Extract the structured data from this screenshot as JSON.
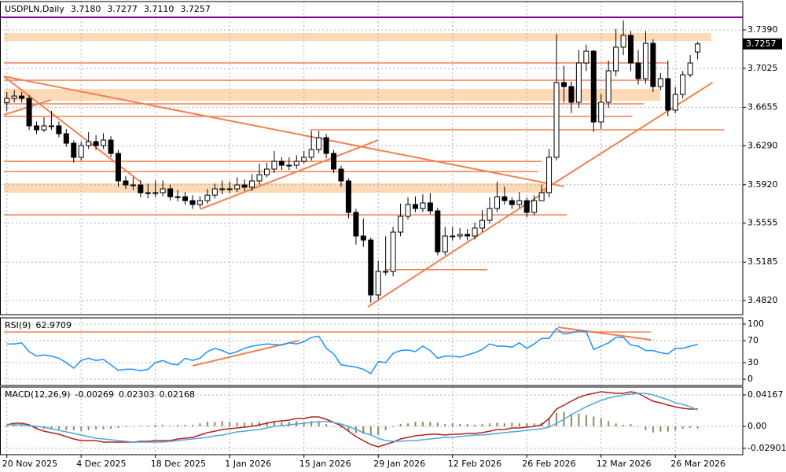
{
  "chart_data": [
    {
      "type": "candlestick",
      "title": "USDPLN,Daily",
      "header_labels": [
        "3.7180",
        "3.7277",
        "3.7110",
        "3.7257"
      ],
      "categories": [
        "20 Nov 2025",
        null,
        null,
        null,
        null,
        null,
        null,
        null,
        null,
        null,
        "4 Dec 2025",
        null,
        null,
        null,
        null,
        null,
        null,
        null,
        null,
        null,
        "18 Dec 2025",
        null,
        null,
        null,
        null,
        null,
        null,
        null,
        null,
        null,
        "1 Jan 2026",
        null,
        null,
        null,
        null,
        null,
        null,
        null,
        null,
        null,
        "15 Jan 2026",
        null,
        null,
        null,
        null,
        null,
        null,
        null,
        null,
        null,
        "29 Jan 2026",
        null,
        null,
        null,
        null,
        null,
        null,
        null,
        null,
        null,
        "12 Feb 2026",
        null,
        null,
        null,
        null,
        null,
        null,
        null,
        null,
        null,
        "26 Feb 2026",
        null,
        null,
        null,
        null,
        null,
        null,
        null,
        null,
        null,
        "12 Mar 2026",
        null,
        null,
        null,
        null,
        null,
        null,
        null,
        null,
        null,
        "26 Mar 2026",
        null,
        null,
        null
      ],
      "open": [
        3.67,
        3.674,
        3.6762,
        3.674,
        3.6479,
        3.6441,
        3.6479,
        3.6479,
        3.6404,
        3.6314,
        3.618,
        3.6292,
        3.6329,
        3.6292,
        3.6344,
        3.6217,
        3.5956,
        3.5918,
        3.5918,
        3.5844,
        3.5844,
        3.5844,
        3.5881,
        3.5806,
        3.5806,
        3.5769,
        3.5732,
        3.5769,
        3.5821,
        3.5881,
        3.5881,
        3.5881,
        3.5918,
        3.5896,
        3.5956,
        3.6015,
        3.6068,
        3.6142,
        3.6105,
        3.6105,
        3.6142,
        3.618,
        3.6254,
        3.6367,
        3.6217,
        3.6068,
        3.5956,
        3.5657,
        3.5433,
        3.5395,
        3.4873,
        3.5097,
        3.5097,
        3.547,
        3.562,
        3.5732,
        3.5694,
        3.5747,
        3.5672,
        3.5283,
        3.5433,
        3.5433,
        3.5448,
        3.5433,
        3.5508,
        3.5582,
        3.5694,
        3.5806,
        3.5769,
        3.5732,
        3.5769,
        3.5657,
        3.5769,
        3.5844,
        3.618,
        3.689,
        3.6852,
        3.6703,
        3.7076,
        3.7188,
        3.6516,
        3.6703,
        3.7002,
        3.7226,
        3.7338,
        3.7076,
        3.6927,
        3.7263,
        3.6852,
        3.6927,
        3.6628,
        3.6777,
        3.6964,
        3.718
      ],
      "high": [
        3.68,
        3.682,
        3.68,
        3.677,
        3.652,
        3.656,
        3.662,
        3.652,
        3.645,
        3.634,
        3.633,
        3.642,
        3.639,
        3.641,
        3.638,
        3.625,
        3.6,
        3.599,
        3.596,
        3.593,
        3.596,
        3.596,
        3.592,
        3.587,
        3.585,
        3.582,
        3.581,
        3.588,
        3.593,
        3.596,
        3.595,
        3.599,
        3.597,
        3.602,
        3.612,
        3.613,
        3.624,
        3.618,
        3.618,
        3.62,
        3.624,
        3.643,
        3.643,
        3.64,
        3.625,
        3.61,
        3.598,
        3.569,
        3.56,
        3.542,
        3.52,
        3.543,
        3.552,
        3.574,
        3.58,
        3.581,
        3.583,
        3.584,
        3.57,
        3.552,
        3.552,
        3.551,
        3.55,
        3.556,
        3.568,
        3.58,
        3.595,
        3.59,
        3.58,
        3.585,
        3.58,
        3.582,
        3.592,
        3.626,
        3.735,
        3.705,
        3.69,
        3.72,
        3.725,
        3.72,
        3.678,
        3.71,
        3.74,
        3.748,
        3.738,
        3.72,
        3.738,
        3.73,
        3.698,
        3.71,
        3.685,
        3.7,
        3.715,
        3.7277
      ],
      "low": [
        3.662,
        3.67,
        3.67,
        3.644,
        3.64,
        3.642,
        3.644,
        3.637,
        3.628,
        3.613,
        3.615,
        3.626,
        3.625,
        3.626,
        3.618,
        3.59,
        3.588,
        3.587,
        3.58,
        3.579,
        3.58,
        3.581,
        3.577,
        3.576,
        3.573,
        3.569,
        3.57,
        3.574,
        3.579,
        3.583,
        3.584,
        3.585,
        3.586,
        3.586,
        3.592,
        3.599,
        3.603,
        3.606,
        3.606,
        3.607,
        3.612,
        3.615,
        3.622,
        3.617,
        3.603,
        3.59,
        3.56,
        3.535,
        3.533,
        3.48,
        3.483,
        3.506,
        3.505,
        3.543,
        3.559,
        3.566,
        3.566,
        3.564,
        3.525,
        3.525,
        3.539,
        3.54,
        3.539,
        3.54,
        3.547,
        3.555,
        3.566,
        3.573,
        3.569,
        3.57,
        3.561,
        3.563,
        3.578,
        3.58,
        3.615,
        3.67,
        3.66,
        3.665,
        3.7,
        3.642,
        3.645,
        3.665,
        3.695,
        3.715,
        3.7,
        3.687,
        3.688,
        3.68,
        3.682,
        3.657,
        3.66,
        3.674,
        3.694,
        3.711
      ],
      "close": [
        3.674,
        3.6762,
        3.674,
        3.6479,
        3.6441,
        3.6479,
        3.6479,
        3.6404,
        3.6314,
        3.618,
        3.6292,
        3.6329,
        3.6292,
        3.6344,
        3.6217,
        3.5956,
        3.5918,
        3.5918,
        3.5844,
        3.5844,
        3.5844,
        3.5881,
        3.5806,
        3.5806,
        3.5769,
        3.5732,
        3.5769,
        3.5821,
        3.5881,
        3.5881,
        3.5881,
        3.5918,
        3.5896,
        3.5956,
        3.6015,
        3.6068,
        3.6142,
        3.6105,
        3.6105,
        3.6142,
        3.618,
        3.6254,
        3.6367,
        3.6217,
        3.6068,
        3.5956,
        3.5657,
        3.5433,
        3.5395,
        3.4873,
        3.5097,
        3.5097,
        3.547,
        3.562,
        3.5732,
        3.5694,
        3.5747,
        3.5672,
        3.5283,
        3.5433,
        3.5433,
        3.5448,
        3.5433,
        3.5508,
        3.5582,
        3.5694,
        3.5806,
        3.5769,
        3.5732,
        3.5769,
        3.5657,
        3.5769,
        3.5844,
        3.618,
        3.689,
        3.6852,
        3.6703,
        3.7076,
        3.7188,
        3.6516,
        3.6703,
        3.7002,
        3.7226,
        3.7338,
        3.7076,
        3.6927,
        3.7263,
        3.6852,
        3.6927,
        3.6628,
        3.6777,
        3.6964,
        3.7076,
        3.7257
      ],
      "up_color": "#ffffff",
      "down_color": "#000000",
      "ylim": [
        3.4686,
        3.7659
      ],
      "yticks": [
        {
          "value": 3.739,
          "label": "3.7390"
        },
        {
          "value": 3.7025,
          "label": "3.7025"
        },
        {
          "value": 3.6655,
          "label": "3.6655"
        },
        {
          "value": 3.629,
          "label": "3.6290"
        },
        {
          "value": 3.592,
          "label": "3.5920"
        },
        {
          "value": 3.5555,
          "label": "3.5555"
        },
        {
          "value": 3.5185,
          "label": "3.5185"
        },
        {
          "value": 3.482,
          "label": "3.4820"
        }
      ],
      "grid": true,
      "drawing_color": "#f08050",
      "zone_color": "#fdd9b5",
      "top_line": {
        "value": 3.751,
        "color": "#8000a0"
      },
      "zones": [
        {
          "low": 3.7285,
          "high": 3.736,
          "from": -0.4,
          "to": 94.8
        },
        {
          "low": 3.6718,
          "high": 3.683,
          "from": -0.4,
          "to": 88
        },
        {
          "low": 3.5844,
          "high": 3.5933,
          "from": -0.4,
          "to": 72.7
        }
      ],
      "hlines": [
        {
          "value": 3.7076,
          "from": -0.4,
          "to": 89
        },
        {
          "value": 3.6912,
          "from": -0.4,
          "to": 86.9
        },
        {
          "value": 3.6688,
          "from": -0.4,
          "to": 85.8
        },
        {
          "value": 3.6568,
          "from": -0.4,
          "to": 84.2
        },
        {
          "value": 3.6441,
          "from": 40.8,
          "to": 96.6
        },
        {
          "value": 3.6142,
          "from": -0.4,
          "to": 72
        },
        {
          "value": 3.6045,
          "from": -0.4,
          "to": 71.5
        },
        {
          "value": 3.5634,
          "from": -0.4,
          "to": 75.4
        },
        {
          "value": 3.5114,
          "from": 50.9,
          "to": 64.7
        }
      ],
      "trendlines": [
        {
          "x1": -0.4,
          "y1": 3.6949,
          "x2": 75,
          "y2": 3.5903
        },
        {
          "x1": -0.4,
          "y1": 3.6949,
          "x2": 18.1,
          "y2": 3.5941
        },
        {
          "x1": -0.4,
          "y1": 3.6583,
          "x2": 5.9,
          "y2": 3.6725
        },
        {
          "x1": 26,
          "y1": 3.5687,
          "x2": 50,
          "y2": 3.6344
        },
        {
          "x1": 48.6,
          "y1": 3.476,
          "x2": 73.1,
          "y2": 3.5881
        },
        {
          "x1": 72,
          "y1": 3.5859,
          "x2": 95,
          "y2": 3.689
        }
      ]
    },
    {
      "type": "line",
      "title": "RSI(9)",
      "series": [
        {
          "name": "RSI(9)",
          "color": "#1e90ff",
          "values": [
            64,
            64,
            66,
            50,
            42,
            44,
            42,
            38,
            30,
            20,
            34,
            38,
            34,
            36,
            26,
            16,
            18,
            18,
            15,
            18,
            30,
            34,
            28,
            26,
            38,
            34,
            38,
            50,
            56,
            52,
            46,
            50,
            56,
            60,
            62,
            64,
            63,
            62,
            66,
            64,
            68,
            76,
            78,
            56,
            46,
            26,
            24,
            22,
            18,
            10,
            32,
            30,
            47,
            52,
            53,
            50,
            60,
            52,
            38,
            42,
            42,
            40,
            44,
            48,
            54,
            64,
            60,
            60,
            58,
            66,
            56,
            64,
            74,
            74,
            92,
            82,
            84,
            88,
            86,
            54,
            60,
            66,
            76,
            76,
            62,
            60,
            52,
            52,
            48,
            46,
            56,
            56,
            60,
            62.9709
          ]
        }
      ],
      "ylim": [
        -11.4,
        111.4
      ],
      "yticks": [
        100,
        70,
        30,
        0
      ],
      "grid": true,
      "drawing_color": "#f08050",
      "hlines": [
        {
          "value": 85.7,
          "from": -0.4,
          "to": 86.7
        }
      ],
      "trendlines": [
        {
          "x1": 25,
          "y1": 24.3,
          "x2": 39.3,
          "y2": 70
        },
        {
          "x1": 74.2,
          "y1": 94.3,
          "x2": 86.7,
          "y2": 71.4
        }
      ]
    },
    {
      "type": "line",
      "title": "MACD(12,26,9)",
      "histogram": {
        "color": "#8a8a60",
        "values": [
          0.002,
          0.003,
          0.002,
          0,
          -0.002,
          -0.003,
          -0.004,
          -0.004,
          -0.005,
          -0.005,
          -0.006,
          -0.005,
          -0.004,
          -0.004,
          -0.003,
          -0.002,
          -0.001,
          0,
          0.001,
          0.001,
          0.002,
          0.002,
          0.001,
          0.002,
          0.002,
          0.002,
          0.004,
          0.006,
          0.006,
          0.007,
          0.006,
          0.005,
          0.005,
          0.005,
          0.006,
          0.006,
          0.006,
          0.006,
          0.006,
          0.007,
          0.006,
          0.007,
          0.006,
          0.003,
          0,
          -0.002,
          -0.006,
          -0.009,
          -0.01,
          -0.012,
          -0.011,
          -0.005,
          -0.001,
          0.003,
          0.004,
          0.006,
          0.006,
          0.006,
          0.005,
          0.003,
          0.004,
          0.003,
          0.003,
          0.002,
          0.003,
          0.004,
          0.005,
          0.004,
          0.005,
          0.004,
          0.004,
          0.004,
          0.005,
          0.011,
          0.018,
          0.019,
          0.017,
          0.017,
          0.015,
          0.013,
          0.011,
          0.007,
          0.004,
          0.002,
          0.003,
          0,
          -0.005,
          -0.008,
          -0.007,
          -0.007,
          -0.005,
          -0.003,
          -0.002,
          -0.00269
        ]
      },
      "series": [
        {
          "name": "MACD",
          "color": "#b22222",
          "values": [
            0.0021,
            0.0042,
            0.0042,
            0.0021,
            -0.0031,
            -0.0063,
            -0.0083,
            -0.0104,
            -0.0135,
            -0.0167,
            -0.0188,
            -0.0188,
            -0.0188,
            -0.0208,
            -0.0208,
            -0.0208,
            -0.0208,
            -0.0208,
            -0.0198,
            -0.0198,
            -0.0188,
            -0.0188,
            -0.0188,
            -0.0167,
            -0.0156,
            -0.0146,
            -0.0115,
            -0.0083,
            -0.0063,
            -0.0042,
            -0.0031,
            -0.0021,
            -0.001,
            0,
            0.0021,
            0.0042,
            0.0063,
            0.0073,
            0.0083,
            0.0104,
            0.0104,
            0.0125,
            0.0125,
            0.0094,
            0.0052,
            0.001,
            -0.0063,
            -0.0135,
            -0.0188,
            -0.024,
            -0.0271,
            -0.024,
            -0.0208,
            -0.0167,
            -0.0146,
            -0.0125,
            -0.0115,
            -0.0104,
            -0.0104,
            -0.0115,
            -0.0104,
            -0.0104,
            -0.0094,
            -0.0094,
            -0.0083,
            -0.0063,
            -0.0042,
            -0.0042,
            -0.0021,
            -0.0021,
            -0.001,
            0,
            0.0021,
            0.0104,
            0.0229,
            0.0281,
            0.0333,
            0.0385,
            0.0417,
            0.0438,
            0.0458,
            0.0448,
            0.0438,
            0.0438,
            0.0458,
            0.0438,
            0.0385,
            0.0333,
            0.0313,
            0.0281,
            0.026,
            0.024,
            0.0229,
            0.02303
          ]
        },
        {
          "name": "Signal",
          "color": "#4fa8dc",
          "values": [
            0.0021,
            0.0021,
            0.0021,
            0.001,
            0,
            -0.001,
            -0.0031,
            -0.0052,
            -0.0073,
            -0.0094,
            -0.0115,
            -0.0135,
            -0.0156,
            -0.0167,
            -0.0177,
            -0.0188,
            -0.0198,
            -0.0208,
            -0.0208,
            -0.0208,
            -0.0208,
            -0.0208,
            -0.0198,
            -0.0188,
            -0.0177,
            -0.0167,
            -0.0156,
            -0.0146,
            -0.0125,
            -0.0115,
            -0.0094,
            -0.0073,
            -0.0063,
            -0.0052,
            -0.0042,
            -0.0021,
            0,
            0.001,
            0.0021,
            0.0031,
            0.0042,
            0.0052,
            0.0063,
            0.0063,
            0.0052,
            0.0031,
            0,
            -0.0042,
            -0.0083,
            -0.0115,
            -0.0156,
            -0.0188,
            -0.0198,
            -0.0198,
            -0.0188,
            -0.0188,
            -0.0177,
            -0.0167,
            -0.0156,
            -0.0146,
            -0.0146,
            -0.0135,
            -0.0125,
            -0.0115,
            -0.0115,
            -0.0104,
            -0.0094,
            -0.0083,
            -0.0073,
            -0.0063,
            -0.0052,
            -0.0042,
            -0.0031,
            -0.001,
            0.0042,
            0.0094,
            0.0156,
            0.0208,
            0.026,
            0.0302,
            0.0344,
            0.0375,
            0.0396,
            0.0417,
            0.0427,
            0.0438,
            0.0438,
            0.0417,
            0.0385,
            0.0354,
            0.0313,
            0.0292,
            0.026,
            0.02168
          ]
        }
      ],
      "ylim": [
        -0.0375,
        0.0521
      ],
      "yticks": [
        0.04167,
        {
          "value": 0,
          "label": "0.00"
        },
        -0.02901
      ],
      "grid": true
    }
  ]
}
